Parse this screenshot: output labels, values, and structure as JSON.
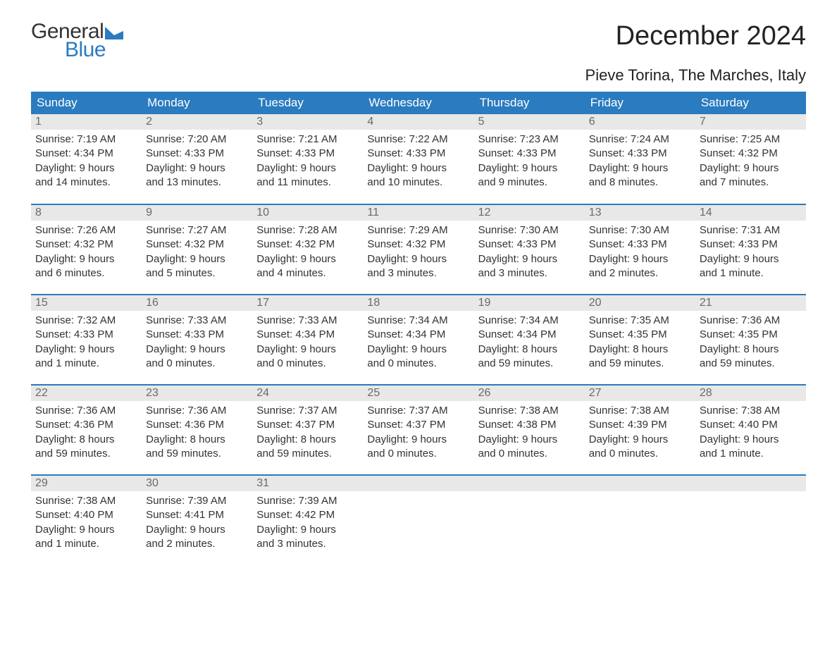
{
  "logo": {
    "word1": "General",
    "word2": "Blue"
  },
  "title": "December 2024",
  "location": "Pieve Torina, The Marches, Italy",
  "colors": {
    "header_bg": "#2a7bbf",
    "header_text": "#ffffff",
    "daynum_bg": "#e8e8e8",
    "daynum_text": "#6a6a6a",
    "body_text": "#333333",
    "rule": "#2a7bbf",
    "page_bg": "#ffffff",
    "logo_blue": "#2a7bbf"
  },
  "weekday_headers": [
    "Sunday",
    "Monday",
    "Tuesday",
    "Wednesday",
    "Thursday",
    "Friday",
    "Saturday"
  ],
  "weeks": [
    [
      {
        "day": "1",
        "sunrise": "Sunrise: 7:19 AM",
        "sunset": "Sunset: 4:34 PM",
        "day1": "Daylight: 9 hours",
        "day2": "and 14 minutes."
      },
      {
        "day": "2",
        "sunrise": "Sunrise: 7:20 AM",
        "sunset": "Sunset: 4:33 PM",
        "day1": "Daylight: 9 hours",
        "day2": "and 13 minutes."
      },
      {
        "day": "3",
        "sunrise": "Sunrise: 7:21 AM",
        "sunset": "Sunset: 4:33 PM",
        "day1": "Daylight: 9 hours",
        "day2": "and 11 minutes."
      },
      {
        "day": "4",
        "sunrise": "Sunrise: 7:22 AM",
        "sunset": "Sunset: 4:33 PM",
        "day1": "Daylight: 9 hours",
        "day2": "and 10 minutes."
      },
      {
        "day": "5",
        "sunrise": "Sunrise: 7:23 AM",
        "sunset": "Sunset: 4:33 PM",
        "day1": "Daylight: 9 hours",
        "day2": "and 9 minutes."
      },
      {
        "day": "6",
        "sunrise": "Sunrise: 7:24 AM",
        "sunset": "Sunset: 4:33 PM",
        "day1": "Daylight: 9 hours",
        "day2": "and 8 minutes."
      },
      {
        "day": "7",
        "sunrise": "Sunrise: 7:25 AM",
        "sunset": "Sunset: 4:32 PM",
        "day1": "Daylight: 9 hours",
        "day2": "and 7 minutes."
      }
    ],
    [
      {
        "day": "8",
        "sunrise": "Sunrise: 7:26 AM",
        "sunset": "Sunset: 4:32 PM",
        "day1": "Daylight: 9 hours",
        "day2": "and 6 minutes."
      },
      {
        "day": "9",
        "sunrise": "Sunrise: 7:27 AM",
        "sunset": "Sunset: 4:32 PM",
        "day1": "Daylight: 9 hours",
        "day2": "and 5 minutes."
      },
      {
        "day": "10",
        "sunrise": "Sunrise: 7:28 AM",
        "sunset": "Sunset: 4:32 PM",
        "day1": "Daylight: 9 hours",
        "day2": "and 4 minutes."
      },
      {
        "day": "11",
        "sunrise": "Sunrise: 7:29 AM",
        "sunset": "Sunset: 4:32 PM",
        "day1": "Daylight: 9 hours",
        "day2": "and 3 minutes."
      },
      {
        "day": "12",
        "sunrise": "Sunrise: 7:30 AM",
        "sunset": "Sunset: 4:33 PM",
        "day1": "Daylight: 9 hours",
        "day2": "and 3 minutes."
      },
      {
        "day": "13",
        "sunrise": "Sunrise: 7:30 AM",
        "sunset": "Sunset: 4:33 PM",
        "day1": "Daylight: 9 hours",
        "day2": "and 2 minutes."
      },
      {
        "day": "14",
        "sunrise": "Sunrise: 7:31 AM",
        "sunset": "Sunset: 4:33 PM",
        "day1": "Daylight: 9 hours",
        "day2": "and 1 minute."
      }
    ],
    [
      {
        "day": "15",
        "sunrise": "Sunrise: 7:32 AM",
        "sunset": "Sunset: 4:33 PM",
        "day1": "Daylight: 9 hours",
        "day2": "and 1 minute."
      },
      {
        "day": "16",
        "sunrise": "Sunrise: 7:33 AM",
        "sunset": "Sunset: 4:33 PM",
        "day1": "Daylight: 9 hours",
        "day2": "and 0 minutes."
      },
      {
        "day": "17",
        "sunrise": "Sunrise: 7:33 AM",
        "sunset": "Sunset: 4:34 PM",
        "day1": "Daylight: 9 hours",
        "day2": "and 0 minutes."
      },
      {
        "day": "18",
        "sunrise": "Sunrise: 7:34 AM",
        "sunset": "Sunset: 4:34 PM",
        "day1": "Daylight: 9 hours",
        "day2": "and 0 minutes."
      },
      {
        "day": "19",
        "sunrise": "Sunrise: 7:34 AM",
        "sunset": "Sunset: 4:34 PM",
        "day1": "Daylight: 8 hours",
        "day2": "and 59 minutes."
      },
      {
        "day": "20",
        "sunrise": "Sunrise: 7:35 AM",
        "sunset": "Sunset: 4:35 PM",
        "day1": "Daylight: 8 hours",
        "day2": "and 59 minutes."
      },
      {
        "day": "21",
        "sunrise": "Sunrise: 7:36 AM",
        "sunset": "Sunset: 4:35 PM",
        "day1": "Daylight: 8 hours",
        "day2": "and 59 minutes."
      }
    ],
    [
      {
        "day": "22",
        "sunrise": "Sunrise: 7:36 AM",
        "sunset": "Sunset: 4:36 PM",
        "day1": "Daylight: 8 hours",
        "day2": "and 59 minutes."
      },
      {
        "day": "23",
        "sunrise": "Sunrise: 7:36 AM",
        "sunset": "Sunset: 4:36 PM",
        "day1": "Daylight: 8 hours",
        "day2": "and 59 minutes."
      },
      {
        "day": "24",
        "sunrise": "Sunrise: 7:37 AM",
        "sunset": "Sunset: 4:37 PM",
        "day1": "Daylight: 8 hours",
        "day2": "and 59 minutes."
      },
      {
        "day": "25",
        "sunrise": "Sunrise: 7:37 AM",
        "sunset": "Sunset: 4:37 PM",
        "day1": "Daylight: 9 hours",
        "day2": "and 0 minutes."
      },
      {
        "day": "26",
        "sunrise": "Sunrise: 7:38 AM",
        "sunset": "Sunset: 4:38 PM",
        "day1": "Daylight: 9 hours",
        "day2": "and 0 minutes."
      },
      {
        "day": "27",
        "sunrise": "Sunrise: 7:38 AM",
        "sunset": "Sunset: 4:39 PM",
        "day1": "Daylight: 9 hours",
        "day2": "and 0 minutes."
      },
      {
        "day": "28",
        "sunrise": "Sunrise: 7:38 AM",
        "sunset": "Sunset: 4:40 PM",
        "day1": "Daylight: 9 hours",
        "day2": "and 1 minute."
      }
    ],
    [
      {
        "day": "29",
        "sunrise": "Sunrise: 7:38 AM",
        "sunset": "Sunset: 4:40 PM",
        "day1": "Daylight: 9 hours",
        "day2": "and 1 minute."
      },
      {
        "day": "30",
        "sunrise": "Sunrise: 7:39 AM",
        "sunset": "Sunset: 4:41 PM",
        "day1": "Daylight: 9 hours",
        "day2": "and 2 minutes."
      },
      {
        "day": "31",
        "sunrise": "Sunrise: 7:39 AM",
        "sunset": "Sunset: 4:42 PM",
        "day1": "Daylight: 9 hours",
        "day2": "and 3 minutes."
      },
      null,
      null,
      null,
      null
    ]
  ]
}
